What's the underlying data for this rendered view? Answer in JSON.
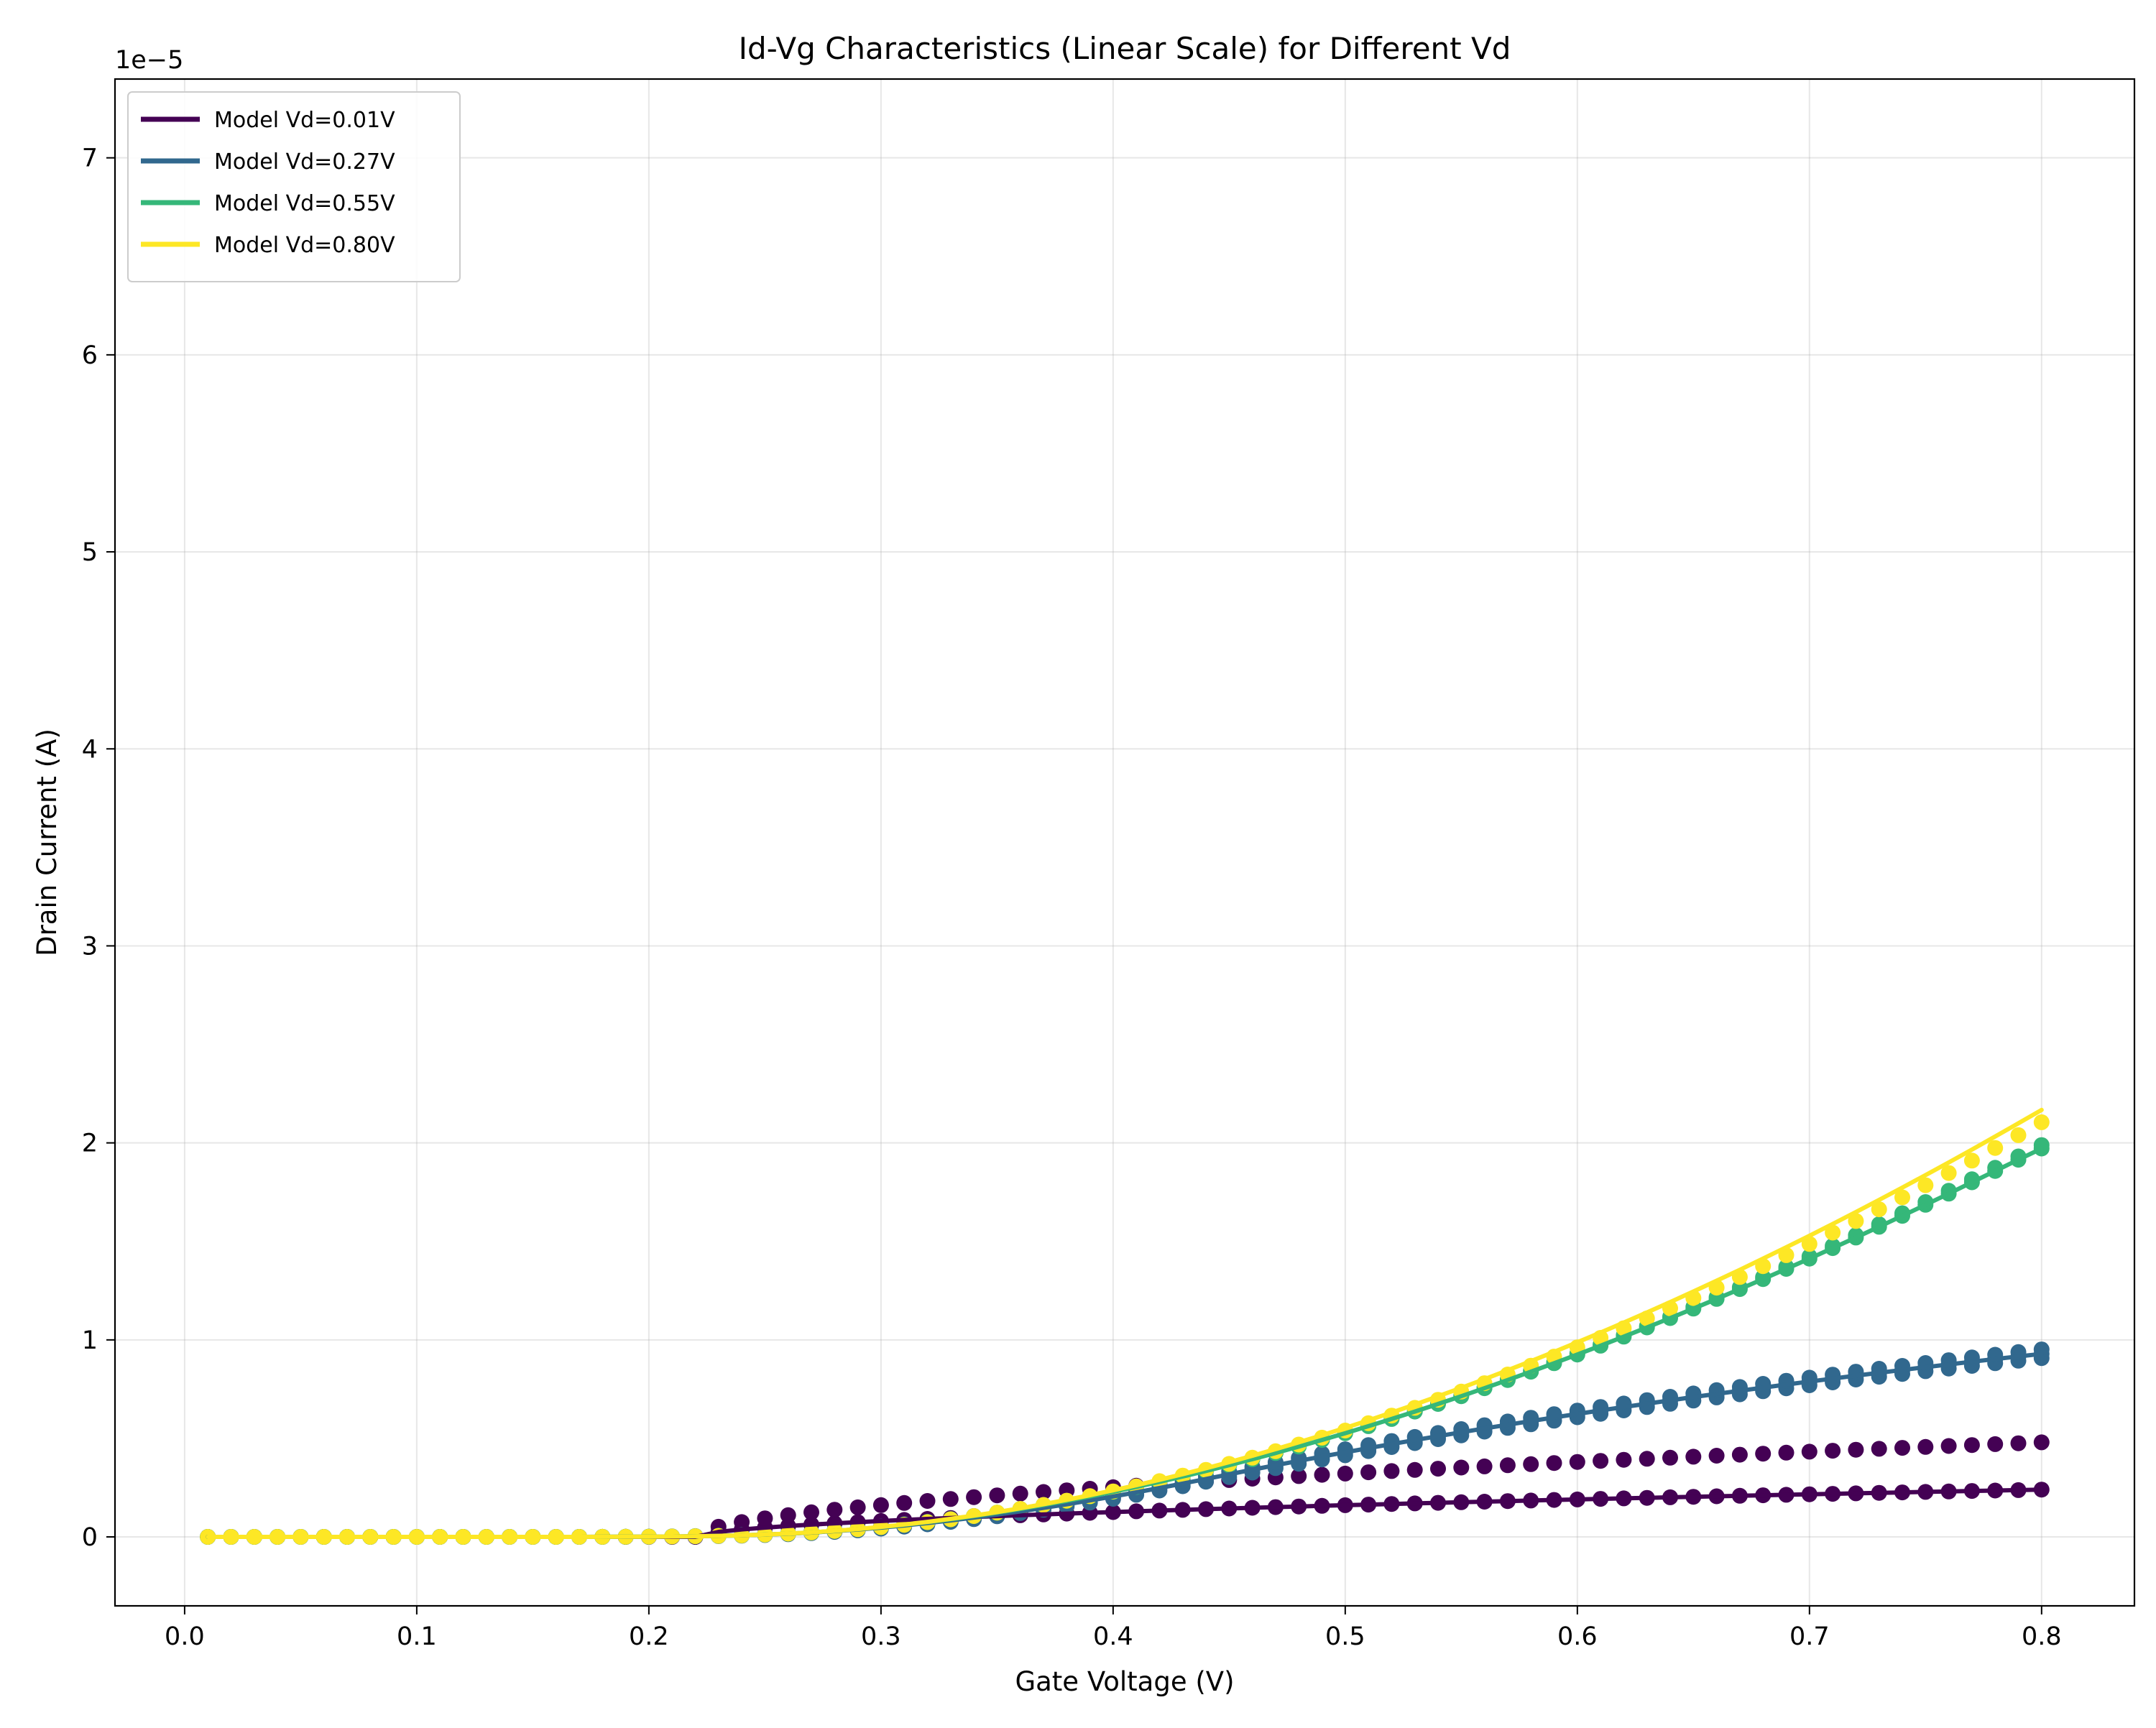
{
  "chart_data": {
    "type": "line",
    "title": "Id-Vg Characteristics (Linear Scale) for Different Vd",
    "xlabel": "Gate Voltage (V)",
    "ylabel": "Drain Current (A)",
    "y_offset_label": "1e−5",
    "xlim": [
      -0.03,
      0.84
    ],
    "ylim": [
      -3.5e-06,
      7.4e-05
    ],
    "x_ticks": [
      0.0,
      0.1,
      0.2,
      0.3,
      0.4,
      0.5,
      0.6,
      0.7,
      0.8
    ],
    "x_tick_labels": [
      "0.0",
      "0.1",
      "0.2",
      "0.3",
      "0.4",
      "0.5",
      "0.6",
      "0.7",
      "0.8"
    ],
    "y_ticks": [
      0,
      1e-05,
      2e-05,
      3e-05,
      4e-05,
      5e-05,
      6e-05,
      7e-05
    ],
    "y_tick_labels": [
      "0",
      "1",
      "2",
      "3",
      "4",
      "5",
      "6",
      "7"
    ],
    "grid": true,
    "legend_position": "top-left",
    "x_sweep": {
      "start": 0.01,
      "stop": 0.8,
      "step": 0.01
    },
    "series": [
      {
        "name": "Model Vd=0.01V",
        "color": "#440154",
        "model": {
          "vt": 0.22,
          "i_max": 2.4e-06
        },
        "measured": [
          {
            "vt": 0.22,
            "i_max": 2.4e-06
          },
          {
            "vt": 0.22,
            "i_max": 4.8e-06
          }
        ]
      },
      {
        "name": "Model Vd=0.27V",
        "color": "#31688e",
        "model": {
          "vt": 0.22,
          "k": 0.000155,
          "theta": 1.25,
          "vx": 0.22
        },
        "measured": [
          {
            "vt": 0.22,
            "k": 0.000155,
            "theta": 1.25,
            "vx": 0.22
          },
          {
            "vt": 0.225,
            "k": 0.000155,
            "theta": 1.3,
            "vx": 0.22
          },
          {
            "vt": 0.215,
            "k": 0.000155,
            "theta": 1.2,
            "vx": 0.22
          }
        ]
      },
      {
        "name": "Model Vd=0.55V",
        "color": "#35b779",
        "model": {
          "vt": 0.22,
          "k": 0.000155,
          "theta": 0.55,
          "vx": 0.55
        },
        "measured": [
          {
            "vt": 0.22,
            "k": 0.000155,
            "theta": 0.55,
            "vx": 0.55
          },
          {
            "vt": 0.22,
            "k": 0.000155,
            "theta": 0.53,
            "vx": 0.55
          }
        ]
      },
      {
        "name": "Model Vd=0.80V",
        "color": "#fde725",
        "model": {
          "vt": 0.22,
          "k": 0.000155,
          "theta": 0.35,
          "vx": 0.8
        },
        "measured": [
          {
            "vt": 0.22,
            "k": 0.000152,
            "theta": 0.37,
            "vx": 0.8
          }
        ]
      }
    ]
  }
}
